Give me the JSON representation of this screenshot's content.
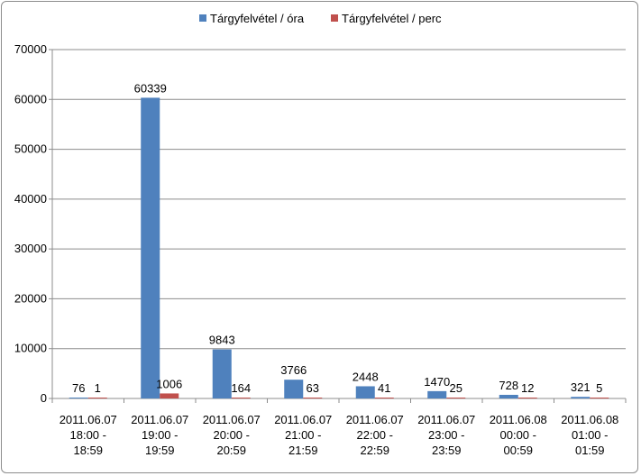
{
  "chart_data": {
    "type": "bar",
    "categories": [
      [
        "2011.06.07",
        "18:00 -",
        "18:59"
      ],
      [
        "2011.06.07",
        "19:00 -",
        "19:59"
      ],
      [
        "2011.06.07",
        "20:00 -",
        "20:59"
      ],
      [
        "2011.06.07",
        "21:00 -",
        "21:59"
      ],
      [
        "2011.06.07",
        "22:00 -",
        "22:59"
      ],
      [
        "2011.06.07",
        "23:00 -",
        "23:59"
      ],
      [
        "2011.06.08",
        "00:00 -",
        "00:59"
      ],
      [
        "2011.06.08",
        "01:00 -",
        "01:59"
      ]
    ],
    "series": [
      {
        "name": "Tárgyfelvétel / óra",
        "color": "#4f81bd",
        "values": [
          76,
          60339,
          9843,
          3766,
          2448,
          1470,
          728,
          321
        ]
      },
      {
        "name": "Tárgyfelvétel / perc",
        "color": "#c0504d",
        "values": [
          1,
          1006,
          164,
          63,
          41,
          25,
          12,
          5
        ]
      }
    ],
    "yticks": [
      "0",
      "10000",
      "20000",
      "30000",
      "40000",
      "50000",
      "60000",
      "70000"
    ],
    "ylim": [
      0,
      70000
    ],
    "grid": true,
    "legend_position": "top"
  }
}
